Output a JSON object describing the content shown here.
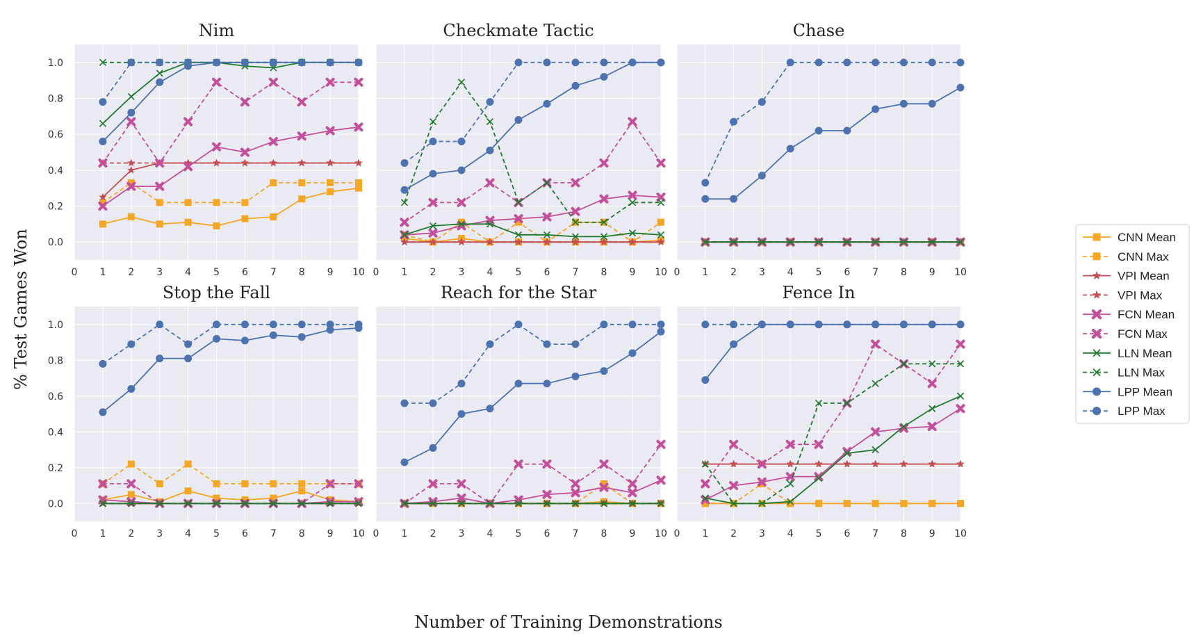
{
  "figure": {
    "ylabel": "% Test Games Won",
    "xlabel": "Number of Training Demonstrations"
  },
  "legend": [
    {
      "name": "CNN Mean",
      "color": "#f5a623",
      "dash": false,
      "marker": "square"
    },
    {
      "name": "CNN Max",
      "color": "#f5a623",
      "dash": true,
      "marker": "square"
    },
    {
      "name": "VPI Mean",
      "color": "#c44e52",
      "dash": false,
      "marker": "star"
    },
    {
      "name": "VPI Max",
      "color": "#c44e52",
      "dash": true,
      "marker": "star"
    },
    {
      "name": "FCN Mean",
      "color": "#c44e9a",
      "dash": false,
      "marker": "x-thick"
    },
    {
      "name": "FCN Max",
      "color": "#c44e9a",
      "dash": true,
      "marker": "x-thick"
    },
    {
      "name": "LLN Mean",
      "color": "#1f7a2e",
      "dash": false,
      "marker": "x"
    },
    {
      "name": "LLN Max",
      "color": "#1f7a2e",
      "dash": true,
      "marker": "x"
    },
    {
      "name": "LPP Mean",
      "color": "#4c72b0",
      "dash": false,
      "marker": "circle"
    },
    {
      "name": "LPP Max",
      "color": "#4c72b0",
      "dash": true,
      "marker": "circle"
    }
  ],
  "chart_data": [
    {
      "type": "line",
      "title": "Nim",
      "x": [
        1,
        2,
        3,
        4,
        5,
        6,
        7,
        8,
        9,
        10
      ],
      "xlim": [
        0,
        10
      ],
      "ylim": [
        -0.1,
        1.1
      ],
      "xticks": [
        "0",
        "1",
        "2",
        "3",
        "4",
        "5",
        "6",
        "7",
        "8",
        "9",
        "10"
      ],
      "yticks": [
        "0.0",
        "0.2",
        "0.4",
        "0.6",
        "0.8",
        "1.0"
      ],
      "series": [
        {
          "name": "CNN Mean",
          "values": [
            0.1,
            0.14,
            0.1,
            0.11,
            0.09,
            0.13,
            0.14,
            0.24,
            0.28,
            0.3
          ]
        },
        {
          "name": "CNN Max",
          "values": [
            0.22,
            0.33,
            0.22,
            0.22,
            0.22,
            0.22,
            0.33,
            0.33,
            0.33,
            0.33
          ]
        },
        {
          "name": "VPI Mean",
          "values": [
            0.25,
            0.4,
            0.44,
            0.44,
            0.44,
            0.44,
            0.44,
            0.44,
            0.44,
            0.44
          ]
        },
        {
          "name": "VPI Max",
          "values": [
            0.44,
            0.44,
            0.44,
            0.44,
            0.44,
            0.44,
            0.44,
            0.44,
            0.44,
            0.44
          ]
        },
        {
          "name": "FCN Mean",
          "values": [
            0.2,
            0.31,
            0.31,
            0.42,
            0.53,
            0.5,
            0.56,
            0.59,
            0.62,
            0.64
          ]
        },
        {
          "name": "FCN Max",
          "values": [
            0.44,
            0.67,
            0.44,
            0.67,
            0.89,
            0.78,
            0.89,
            0.78,
            0.89,
            0.89
          ]
        },
        {
          "name": "LLN Mean",
          "values": [
            0.66,
            0.81,
            0.94,
            1.0,
            1.0,
            0.98,
            0.97,
            1.0,
            1.0,
            1.0
          ]
        },
        {
          "name": "LLN Max",
          "values": [
            1.0,
            1.0,
            1.0,
            1.0,
            1.0,
            1.0,
            1.0,
            1.0,
            1.0,
            1.0
          ]
        },
        {
          "name": "LPP Mean",
          "values": [
            0.56,
            0.72,
            0.89,
            0.98,
            1.0,
            1.0,
            1.0,
            1.0,
            1.0,
            1.0
          ]
        },
        {
          "name": "LPP Max",
          "values": [
            0.78,
            1.0,
            1.0,
            1.0,
            1.0,
            1.0,
            1.0,
            1.0,
            1.0,
            1.0
          ]
        }
      ]
    },
    {
      "type": "line",
      "title": "Checkmate Tactic",
      "x": [
        1,
        2,
        3,
        4,
        5,
        6,
        7,
        8,
        9,
        10
      ],
      "xlim": [
        0,
        10
      ],
      "ylim": [
        -0.1,
        1.1
      ],
      "xticks": [
        "0",
        "1",
        "2",
        "3",
        "4",
        "5",
        "6",
        "7",
        "8",
        "9",
        "10"
      ],
      "yticks": [],
      "series": [
        {
          "name": "CNN Mean",
          "values": [
            0.02,
            0.0,
            0.02,
            0.0,
            0.0,
            0.0,
            0.0,
            0.0,
            0.0,
            0.01
          ]
        },
        {
          "name": "CNN Max",
          "values": [
            0.04,
            0.0,
            0.11,
            0.0,
            0.11,
            0.0,
            0.11,
            0.11,
            0.0,
            0.11
          ]
        },
        {
          "name": "VPI Mean",
          "values": [
            0.0,
            0.0,
            0.0,
            0.0,
            0.0,
            0.0,
            0.0,
            0.0,
            0.0,
            0.0
          ]
        },
        {
          "name": "VPI Max",
          "values": [
            0.0,
            0.0,
            0.0,
            0.0,
            0.0,
            0.0,
            0.0,
            0.0,
            0.0,
            0.0
          ]
        },
        {
          "name": "FCN Mean",
          "values": [
            0.04,
            0.05,
            0.09,
            0.12,
            0.13,
            0.14,
            0.17,
            0.24,
            0.26,
            0.25
          ]
        },
        {
          "name": "FCN Max",
          "values": [
            0.11,
            0.22,
            0.22,
            0.33,
            0.22,
            0.33,
            0.33,
            0.44,
            0.67,
            0.44
          ]
        },
        {
          "name": "LLN Mean",
          "values": [
            0.04,
            0.09,
            0.1,
            0.1,
            0.04,
            0.04,
            0.03,
            0.03,
            0.05,
            0.04
          ]
        },
        {
          "name": "LLN Max",
          "values": [
            0.22,
            0.67,
            0.89,
            0.67,
            0.22,
            0.33,
            0.11,
            0.11,
            0.22,
            0.22
          ]
        },
        {
          "name": "LPP Mean",
          "values": [
            0.29,
            0.38,
            0.4,
            0.51,
            0.68,
            0.77,
            0.87,
            0.92,
            1.0,
            1.0
          ]
        },
        {
          "name": "LPP Max",
          "values": [
            0.44,
            0.56,
            0.56,
            0.78,
            1.0,
            1.0,
            1.0,
            1.0,
            1.0,
            1.0
          ]
        }
      ]
    },
    {
      "type": "line",
      "title": "Chase",
      "x": [
        1,
        2,
        3,
        4,
        5,
        6,
        7,
        8,
        9,
        10
      ],
      "xlim": [
        0,
        10
      ],
      "ylim": [
        -0.1,
        1.1
      ],
      "xticks": [
        "0",
        "1",
        "2",
        "3",
        "4",
        "5",
        "6",
        "7",
        "8",
        "9",
        "10"
      ],
      "yticks": [],
      "series": [
        {
          "name": "CNN Mean",
          "values": [
            0,
            0,
            0,
            0,
            0,
            0,
            0,
            0,
            0,
            0
          ]
        },
        {
          "name": "CNN Max",
          "values": [
            0,
            0,
            0,
            0,
            0,
            0,
            0,
            0,
            0,
            0
          ]
        },
        {
          "name": "VPI Mean",
          "values": [
            0,
            0,
            0,
            0,
            0,
            0,
            0,
            0,
            0,
            0
          ]
        },
        {
          "name": "VPI Max",
          "values": [
            0,
            0,
            0,
            0,
            0,
            0,
            0,
            0,
            0,
            0
          ]
        },
        {
          "name": "FCN Mean",
          "values": [
            0,
            0,
            0,
            0,
            0,
            0,
            0,
            0,
            0,
            0
          ]
        },
        {
          "name": "FCN Max",
          "values": [
            0,
            0,
            0,
            0,
            0,
            0,
            0,
            0,
            0,
            0
          ]
        },
        {
          "name": "LLN Mean",
          "values": [
            0,
            0,
            0,
            0,
            0,
            0,
            0,
            0,
            0,
            0
          ]
        },
        {
          "name": "LLN Max",
          "values": [
            0,
            0,
            0,
            0,
            0,
            0,
            0,
            0,
            0,
            0
          ]
        },
        {
          "name": "LPP Mean",
          "values": [
            0.24,
            0.24,
            0.37,
            0.52,
            0.62,
            0.62,
            0.74,
            0.77,
            0.77,
            0.86
          ]
        },
        {
          "name": "LPP Max",
          "values": [
            0.33,
            0.67,
            0.78,
            1.0,
            1.0,
            1.0,
            1.0,
            1.0,
            1.0,
            1.0
          ]
        }
      ]
    },
    {
      "type": "line",
      "title": "Stop the Fall",
      "x": [
        1,
        2,
        3,
        4,
        5,
        6,
        7,
        8,
        9,
        10
      ],
      "xlim": [
        0,
        10
      ],
      "ylim": [
        -0.1,
        1.1
      ],
      "xticks": [
        "0",
        "1",
        "2",
        "3",
        "4",
        "5",
        "6",
        "7",
        "8",
        "9",
        "10"
      ],
      "yticks": [
        "0.0",
        "0.2",
        "0.4",
        "0.6",
        "0.8",
        "1.0"
      ],
      "series": [
        {
          "name": "CNN Mean",
          "values": [
            0.02,
            0.05,
            0.01,
            0.07,
            0.03,
            0.02,
            0.03,
            0.07,
            0.02,
            0.01
          ]
        },
        {
          "name": "CNN Max",
          "values": [
            0.11,
            0.22,
            0.11,
            0.22,
            0.11,
            0.11,
            0.11,
            0.11,
            0.11,
            0.11
          ]
        },
        {
          "name": "VPI Mean",
          "values": [
            0,
            0,
            0,
            0,
            0,
            0,
            0,
            0,
            0,
            0
          ]
        },
        {
          "name": "VPI Max",
          "values": [
            0,
            0,
            0,
            0,
            0,
            0,
            0,
            0,
            0,
            0
          ]
        },
        {
          "name": "FCN Mean",
          "values": [
            0.02,
            0.01,
            0.0,
            0.0,
            0.0,
            0.0,
            0.0,
            0.0,
            0.01,
            0.01
          ]
        },
        {
          "name": "FCN Max",
          "values": [
            0.11,
            0.11,
            0.0,
            0.0,
            0.0,
            0.0,
            0.0,
            0.0,
            0.11,
            0.11
          ]
        },
        {
          "name": "LLN Mean",
          "values": [
            0,
            0,
            0,
            0,
            0,
            0,
            0,
            0,
            0,
            0
          ]
        },
        {
          "name": "LLN Max",
          "values": [
            0,
            0,
            0,
            0,
            0,
            0,
            0,
            0,
            0,
            0
          ]
        },
        {
          "name": "LPP Mean",
          "values": [
            0.51,
            0.64,
            0.81,
            0.81,
            0.92,
            0.91,
            0.94,
            0.93,
            0.97,
            0.98
          ]
        },
        {
          "name": "LPP Max",
          "values": [
            0.78,
            0.89,
            1.0,
            0.89,
            1.0,
            1.0,
            1.0,
            1.0,
            1.0,
            1.0
          ]
        }
      ]
    },
    {
      "type": "line",
      "title": "Reach for the Star",
      "x": [
        1,
        2,
        3,
        4,
        5,
        6,
        7,
        8,
        9,
        10
      ],
      "xlim": [
        0,
        10
      ],
      "ylim": [
        -0.1,
        1.1
      ],
      "xticks": [
        "0",
        "1",
        "2",
        "3",
        "4",
        "5",
        "6",
        "7",
        "8",
        "9",
        "10"
      ],
      "yticks": [],
      "series": [
        {
          "name": "CNN Mean",
          "values": [
            0,
            0,
            0,
            0,
            0,
            0,
            0,
            0.01,
            0,
            0
          ]
        },
        {
          "name": "CNN Max",
          "values": [
            0,
            0,
            0,
            0,
            0,
            0,
            0,
            0.11,
            0,
            0
          ]
        },
        {
          "name": "VPI Mean",
          "values": [
            0,
            0,
            0,
            0,
            0,
            0,
            0,
            0,
            0,
            0
          ]
        },
        {
          "name": "VPI Max",
          "values": [
            0,
            0,
            0,
            0,
            0,
            0,
            0,
            0,
            0,
            0
          ]
        },
        {
          "name": "FCN Mean",
          "values": [
            0.0,
            0.01,
            0.03,
            0.0,
            0.02,
            0.05,
            0.06,
            0.09,
            0.06,
            0.13
          ]
        },
        {
          "name": "FCN Max",
          "values": [
            0.0,
            0.11,
            0.11,
            0.0,
            0.22,
            0.22,
            0.11,
            0.22,
            0.11,
            0.33
          ]
        },
        {
          "name": "LLN Mean",
          "values": [
            0,
            0,
            0,
            0,
            0,
            0,
            0,
            0,
            0,
            0
          ]
        },
        {
          "name": "LLN Max",
          "values": [
            0,
            0,
            0,
            0,
            0,
            0,
            0,
            0,
            0,
            0
          ]
        },
        {
          "name": "LPP Mean",
          "values": [
            0.23,
            0.31,
            0.5,
            0.53,
            0.67,
            0.67,
            0.71,
            0.74,
            0.84,
            0.96
          ]
        },
        {
          "name": "LPP Max",
          "values": [
            0.56,
            0.56,
            0.67,
            0.89,
            1.0,
            0.89,
            0.89,
            1.0,
            1.0,
            1.0
          ]
        }
      ]
    },
    {
      "type": "line",
      "title": "Fence In",
      "x": [
        1,
        2,
        3,
        4,
        5,
        6,
        7,
        8,
        9,
        10
      ],
      "xlim": [
        0,
        10
      ],
      "ylim": [
        -0.1,
        1.1
      ],
      "xticks": [
        "0",
        "1",
        "2",
        "3",
        "4",
        "5",
        "6",
        "7",
        "8",
        "9",
        "10"
      ],
      "yticks": [],
      "series": [
        {
          "name": "CNN Mean",
          "values": [
            0,
            0,
            0,
            0,
            0,
            0,
            0,
            0,
            0,
            0
          ]
        },
        {
          "name": "CNN Max",
          "values": [
            0.0,
            0.0,
            0.11,
            0.0,
            0.0,
            0.0,
            0.0,
            0.0,
            0.0,
            0.0
          ]
        },
        {
          "name": "VPI Mean",
          "values": [
            0.22,
            0.22,
            0.22,
            0.22,
            0.22,
            0.22,
            0.22,
            0.22,
            0.22,
            0.22
          ]
        },
        {
          "name": "VPI Max",
          "values": [
            0.22,
            0.22,
            0.22,
            0.22,
            0.22,
            0.22,
            0.22,
            0.22,
            0.22,
            0.22
          ]
        },
        {
          "name": "FCN Mean",
          "values": [
            0.02,
            0.1,
            0.12,
            0.15,
            0.15,
            0.29,
            0.4,
            0.42,
            0.43,
            0.53
          ]
        },
        {
          "name": "FCN Max",
          "values": [
            0.11,
            0.33,
            0.22,
            0.33,
            0.33,
            0.56,
            0.89,
            0.78,
            0.67,
            0.89
          ]
        },
        {
          "name": "LLN Mean",
          "values": [
            0.03,
            0.0,
            0.0,
            0.01,
            0.14,
            0.28,
            0.3,
            0.43,
            0.53,
            0.6
          ]
        },
        {
          "name": "LLN Max",
          "values": [
            0.22,
            0.0,
            0.0,
            0.11,
            0.56,
            0.56,
            0.67,
            0.78,
            0.78,
            0.78
          ]
        },
        {
          "name": "LPP Mean",
          "values": [
            0.69,
            0.89,
            1.0,
            1.0,
            1.0,
            1.0,
            1.0,
            1.0,
            1.0,
            1.0
          ]
        },
        {
          "name": "LPP Max",
          "values": [
            1.0,
            1.0,
            1.0,
            1.0,
            1.0,
            1.0,
            1.0,
            1.0,
            1.0,
            1.0
          ]
        }
      ]
    }
  ]
}
